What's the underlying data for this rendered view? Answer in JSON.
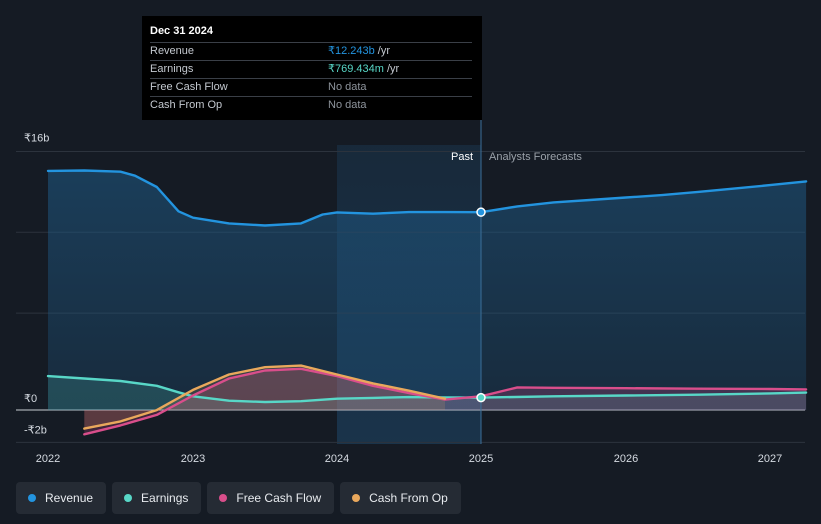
{
  "chart_data": {
    "type": "line",
    "title": "",
    "xlabel": "",
    "ylabel": "",
    "x_ticks": [
      "2022",
      "2023",
      "2024",
      "2025",
      "2026",
      "2027"
    ],
    "x_range": [
      2021.8,
      2027.25
    ],
    "ylim": [
      -2.1,
      16.4
    ],
    "y_tick_labels": [
      "₹16b",
      "₹0",
      "-₹2b"
    ],
    "y_tick_values": [
      16,
      0,
      -2
    ],
    "gridlines": [
      16,
      11,
      6,
      0,
      -2
    ],
    "divider_x": 2025.0,
    "past_label": "Past",
    "forecast_label": "Analysts Forecasts",
    "series": [
      {
        "name": "Revenue",
        "color": "#2394df",
        "fill": true,
        "points": [
          [
            2022.0,
            14.8
          ],
          [
            2022.25,
            14.82
          ],
          [
            2022.5,
            14.75
          ],
          [
            2022.6,
            14.5
          ],
          [
            2022.75,
            13.8
          ],
          [
            2022.9,
            12.3
          ],
          [
            2023.0,
            11.9
          ],
          [
            2023.25,
            11.55
          ],
          [
            2023.5,
            11.42
          ],
          [
            2023.75,
            11.55
          ],
          [
            2023.9,
            12.1
          ],
          [
            2024.0,
            12.23
          ],
          [
            2024.25,
            12.15
          ],
          [
            2024.5,
            12.25
          ],
          [
            2024.75,
            12.25
          ],
          [
            2025.0,
            12.243
          ],
          [
            2025.25,
            12.6
          ],
          [
            2025.5,
            12.85
          ],
          [
            2025.75,
            13.0
          ],
          [
            2026.0,
            13.15
          ],
          [
            2026.25,
            13.3
          ],
          [
            2026.5,
            13.5
          ],
          [
            2026.75,
            13.7
          ],
          [
            2027.0,
            13.92
          ],
          [
            2027.25,
            14.15
          ]
        ]
      },
      {
        "name": "Earnings",
        "color": "#58d7c7",
        "fill": true,
        "points": [
          [
            2022.0,
            2.1
          ],
          [
            2022.25,
            1.95
          ],
          [
            2022.5,
            1.8
          ],
          [
            2022.75,
            1.5
          ],
          [
            2022.9,
            1.1
          ],
          [
            2023.0,
            0.85
          ],
          [
            2023.25,
            0.58
          ],
          [
            2023.5,
            0.5
          ],
          [
            2023.75,
            0.55
          ],
          [
            2024.0,
            0.7
          ],
          [
            2024.25,
            0.75
          ],
          [
            2024.5,
            0.8
          ],
          [
            2024.75,
            0.78
          ],
          [
            2025.0,
            0.769
          ],
          [
            2025.5,
            0.85
          ],
          [
            2026.0,
            0.9
          ],
          [
            2026.5,
            0.95
          ],
          [
            2027.0,
            1.03
          ],
          [
            2027.25,
            1.08
          ]
        ]
      },
      {
        "name": "Free Cash Flow",
        "color": "#d94e8b",
        "fill": true,
        "points": [
          [
            2022.25,
            -1.5
          ],
          [
            2022.5,
            -0.95
          ],
          [
            2022.75,
            -0.3
          ],
          [
            2023.0,
            0.9
          ],
          [
            2023.25,
            1.95
          ],
          [
            2023.5,
            2.45
          ],
          [
            2023.75,
            2.55
          ],
          [
            2024.0,
            2.1
          ],
          [
            2024.25,
            1.5
          ],
          [
            2024.5,
            1.05
          ],
          [
            2024.75,
            0.65
          ],
          [
            2025.0,
            0.85
          ],
          [
            2025.25,
            1.4
          ],
          [
            2025.5,
            1.38
          ],
          [
            2026.0,
            1.35
          ],
          [
            2026.5,
            1.32
          ],
          [
            2027.0,
            1.3
          ],
          [
            2027.25,
            1.28
          ]
        ]
      },
      {
        "name": "Cash From Op",
        "color": "#e9a85c",
        "fill": true,
        "points": [
          [
            2022.25,
            -1.15
          ],
          [
            2022.5,
            -0.7
          ],
          [
            2022.75,
            0.0
          ],
          [
            2023.0,
            1.25
          ],
          [
            2023.25,
            2.2
          ],
          [
            2023.5,
            2.65
          ],
          [
            2023.75,
            2.75
          ],
          [
            2024.0,
            2.2
          ],
          [
            2024.25,
            1.65
          ],
          [
            2024.5,
            1.2
          ],
          [
            2024.75,
            0.7
          ]
        ]
      }
    ]
  },
  "tooltip": {
    "date": "Dec 31 2024",
    "rows": [
      {
        "label": "Revenue",
        "value": "₹12.243b",
        "unit": "/yr",
        "color": "#2394df"
      },
      {
        "label": "Earnings",
        "value": "₹769.434m",
        "unit": "/yr",
        "color": "#58d7c7"
      },
      {
        "label": "Free Cash Flow",
        "value": "No data",
        "unit": "",
        "color": "#8e949c"
      },
      {
        "label": "Cash From Op",
        "value": "No data",
        "unit": "",
        "color": "#8e949c"
      }
    ]
  },
  "legend": [
    {
      "label": "Revenue",
      "color": "#2394df"
    },
    {
      "label": "Earnings",
      "color": "#58d7c7"
    },
    {
      "label": "Free Cash Flow",
      "color": "#d94e8b"
    },
    {
      "label": "Cash From Op",
      "color": "#e9a85c"
    }
  ]
}
